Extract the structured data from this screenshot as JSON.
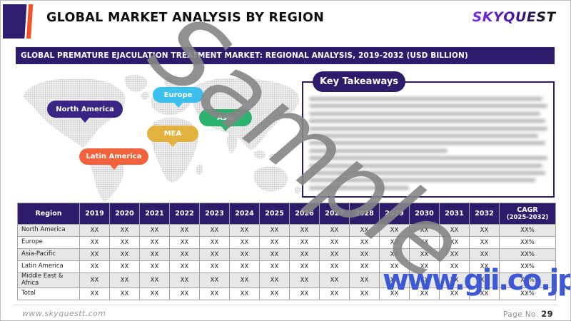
{
  "header": {
    "title": "GLOBAL MARKET ANALYSIS BY REGION",
    "logo_text": "SKYQUEST"
  },
  "banner": {
    "text": "GLOBAL PREMATURE EJACULATION TREATMENT MARKET: REGIONAL ANALYSIS, 2019-2032 (USD BILLION)"
  },
  "map": {
    "labels": [
      {
        "name": "North America",
        "color": "#3b2483"
      },
      {
        "name": "Europe",
        "color": "#3cbfec"
      },
      {
        "name": "Asia",
        "color": "#2db26f"
      },
      {
        "name": "MEA",
        "color": "#e3b13e"
      },
      {
        "name": "Latin America",
        "color": "#f4623c"
      }
    ]
  },
  "key_takeaways": {
    "title": "Key Takeaways",
    "content_redacted": true
  },
  "table": {
    "region_header": "Region",
    "years": [
      "2019",
      "2020",
      "2021",
      "2022",
      "2023",
      "2024",
      "2025",
      "2026",
      "2027",
      "2028",
      "2029",
      "2030",
      "2031",
      "2032"
    ],
    "cagr_header_line1": "CAGR",
    "cagr_header_line2": "(2025-2032)",
    "rows": [
      {
        "region": "North America",
        "values": [
          "XX",
          "XX",
          "XX",
          "XX",
          "XX",
          "XX",
          "XX",
          "XX",
          "XX",
          "XX",
          "XX",
          "XX",
          "XX",
          "XX"
        ],
        "cagr": "XX%"
      },
      {
        "region": "Europe",
        "values": [
          "XX",
          "XX",
          "XX",
          "XX",
          "XX",
          "XX",
          "XX",
          "XX",
          "XX",
          "XX",
          "XX",
          "XX",
          "XX",
          "XX"
        ],
        "cagr": "XX%"
      },
      {
        "region": "Asia-Pacific",
        "values": [
          "XX",
          "XX",
          "XX",
          "XX",
          "XX",
          "XX",
          "XX",
          "XX",
          "XX",
          "XX",
          "XX",
          "XX",
          "XX",
          "XX"
        ],
        "cagr": "XX%"
      },
      {
        "region": "Latin America",
        "values": [
          "XX",
          "XX",
          "XX",
          "XX",
          "XX",
          "XX",
          "XX",
          "XX",
          "XX",
          "XX",
          "XX",
          "XX",
          "XX",
          "XX"
        ],
        "cagr": "XX%"
      },
      {
        "region": "Middle East & Africa",
        "values": [
          "XX",
          "XX",
          "XX",
          "XX",
          "XX",
          "XX",
          "XX",
          "XX",
          "XX",
          "XX",
          "XX",
          "XX",
          "XX",
          "XX"
        ],
        "cagr": "XX%"
      },
      {
        "region": "Total",
        "values": [
          "XX",
          "XX",
          "XX",
          "XX",
          "XX",
          "XX",
          "XX",
          "XX",
          "XX",
          "XX",
          "XX",
          "XX",
          "XX",
          "XX"
        ],
        "cagr": "XX%"
      }
    ]
  },
  "watermarks": {
    "sample": "Sample",
    "gii": "www.gii.co.jp"
  },
  "footer": {
    "website": "www.skyquestt.com",
    "page_label": "Page No.",
    "page_number": "29"
  },
  "colors": {
    "primary_purple": "#2e1b6b",
    "accent_orange": "#f2512a",
    "table_alt_row": "#e7e7e7",
    "gii_blue": "#3d58d4",
    "sample_gray": "#868686"
  }
}
